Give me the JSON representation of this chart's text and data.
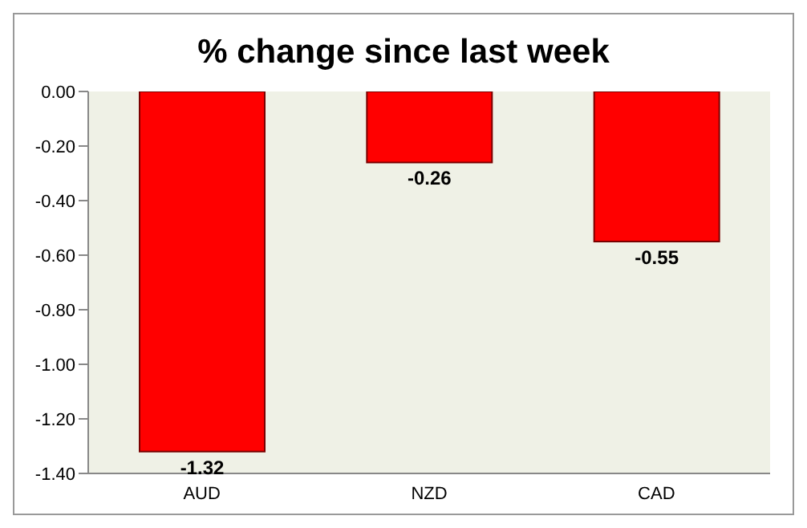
{
  "chart_data": {
    "type": "bar",
    "title": "% change since last week",
    "categories": [
      "AUD",
      "NZD",
      "CAD"
    ],
    "values": [
      -1.32,
      -0.26,
      -0.55
    ],
    "color": "#ff0000",
    "data_labels": true,
    "grid": false,
    "ylim": [
      -1.4,
      0
    ],
    "yticks": [
      {
        "value": 0,
        "label": "0.00"
      },
      {
        "value": -0.2,
        "label": "-0.20"
      },
      {
        "value": -0.4,
        "label": "-0.40"
      },
      {
        "value": -0.6,
        "label": "-0.60"
      },
      {
        "value": -0.8,
        "label": "-0.80"
      },
      {
        "value": -1.0,
        "label": "-1.00"
      },
      {
        "value": -1.2,
        "label": "-1.20"
      },
      {
        "value": -1.4,
        "label": "-1.40"
      }
    ]
  }
}
